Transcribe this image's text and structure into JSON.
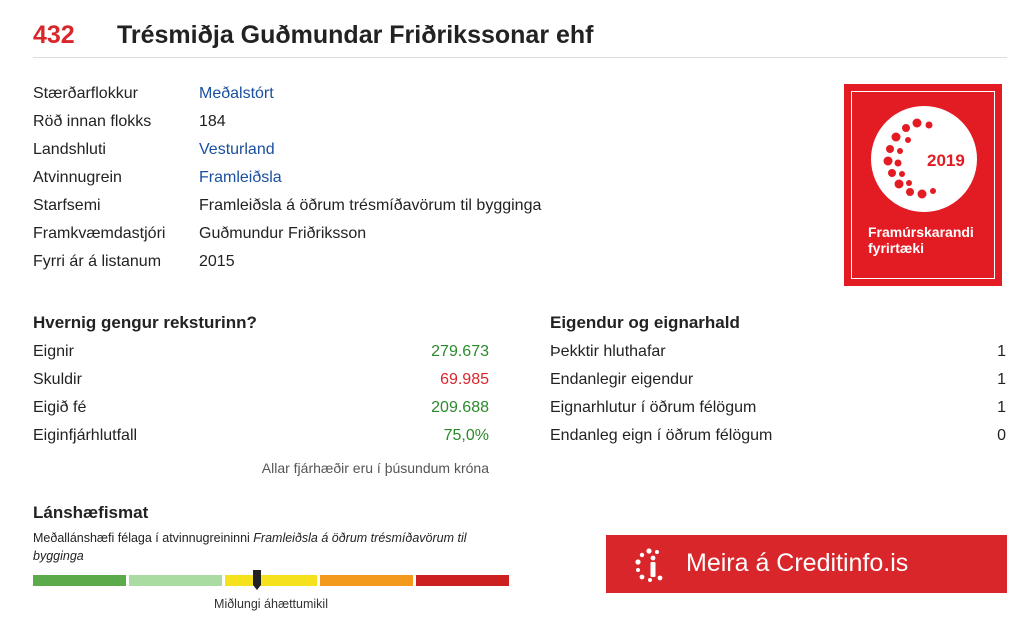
{
  "header": {
    "rank": "432",
    "company": "Trésmiðja Guðmundar Friðrikssonar ehf"
  },
  "info": [
    {
      "label": "Stærðarflokkur",
      "value": "Meðalstórt",
      "link": true
    },
    {
      "label": "Röð innan flokks",
      "value": "184",
      "link": false
    },
    {
      "label": "Landshluti",
      "value": "Vesturland",
      "link": true
    },
    {
      "label": "Atvinnugrein",
      "value": "Framleiðsla",
      "link": true
    },
    {
      "label": "Starfsemi",
      "value": "Framleiðsla á öðrum trésmíðavörum til bygginga",
      "link": false
    },
    {
      "label": "Framkvæmdastjóri",
      "value": "Guðmundur Friðriksson",
      "link": false
    },
    {
      "label": "Fyrri ár á listanum",
      "value": "2015",
      "link": false
    }
  ],
  "badge": {
    "year": "2019",
    "line1": "Framúrskarandi",
    "line2": "fyrirtæki",
    "color": "#e31b23"
  },
  "finance": {
    "title": "Hvernig gengur reksturinn?",
    "rows": [
      {
        "label": "Eignir",
        "value": "279.673",
        "tone": "green"
      },
      {
        "label": "Skuldir",
        "value": "69.985",
        "tone": "red"
      },
      {
        "label": "Eigið fé",
        "value": "209.688",
        "tone": "green"
      },
      {
        "label": "Eiginfjárhlutfall",
        "value": "75,0%",
        "tone": "green"
      }
    ],
    "note": "Allar fjárhæðir eru í þúsundum króna"
  },
  "ownership": {
    "title": "Eigendur og eignarhald",
    "rows": [
      {
        "label": "Þekktir hluthafar",
        "value": "1"
      },
      {
        "label": "Endanlegir eigendur",
        "value": "1"
      },
      {
        "label": "Eignarhlutur í öðrum félögum",
        "value": "1"
      },
      {
        "label": "Endanleg eign í öðrum félögum",
        "value": "0"
      }
    ]
  },
  "credit": {
    "title": "Lánshæfismat",
    "desc_prefix": "Meðallánshæfi félaga í atvinnugreininni ",
    "desc_italic": "Framleiðsla á öðrum trésmíðavörum til bygginga",
    "risk_label": "Miðlungi áhættumikil",
    "risk_position": 0.47,
    "segment_colors": [
      "#5cab4a",
      "#a8dca0",
      "#f5e11e",
      "#f39a1c",
      "#cc1f1f"
    ]
  },
  "cta": {
    "label": "Meira á Creditinfo.is",
    "color": "#d8262b"
  }
}
